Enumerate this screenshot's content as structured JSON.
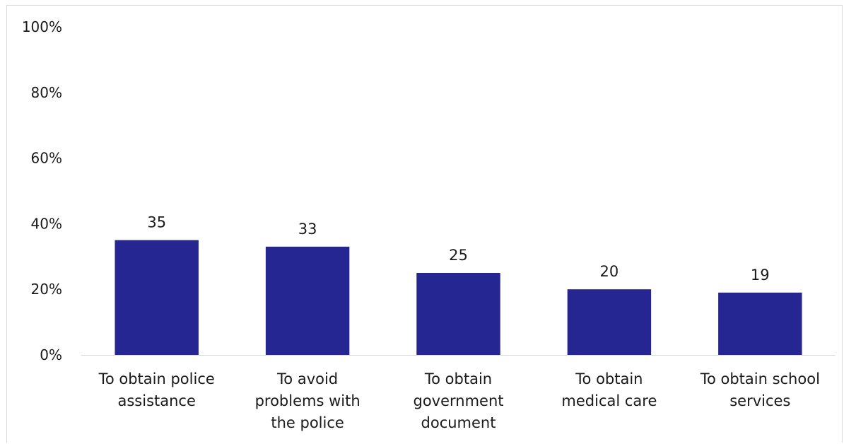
{
  "chart_data": {
    "type": "bar",
    "categories": [
      [
        "To obtain police",
        "assistance"
      ],
      [
        "To avoid",
        "problems with",
        "the police"
      ],
      [
        "To obtain",
        "government",
        "document"
      ],
      [
        "To obtain",
        "medical care"
      ],
      [
        "To obtain school",
        "services"
      ]
    ],
    "values": [
      35,
      33,
      25,
      20,
      19
    ],
    "data_labels": [
      "35",
      "33",
      "25",
      "20",
      "19"
    ],
    "ylim": [
      0,
      100
    ],
    "yticks": [
      0,
      20,
      40,
      60,
      80,
      100
    ],
    "ytick_labels": [
      "0%",
      "20%",
      "40%",
      "60%",
      "80%",
      "100%"
    ],
    "bar_color": "#262693",
    "grid": false,
    "legend": "none"
  }
}
